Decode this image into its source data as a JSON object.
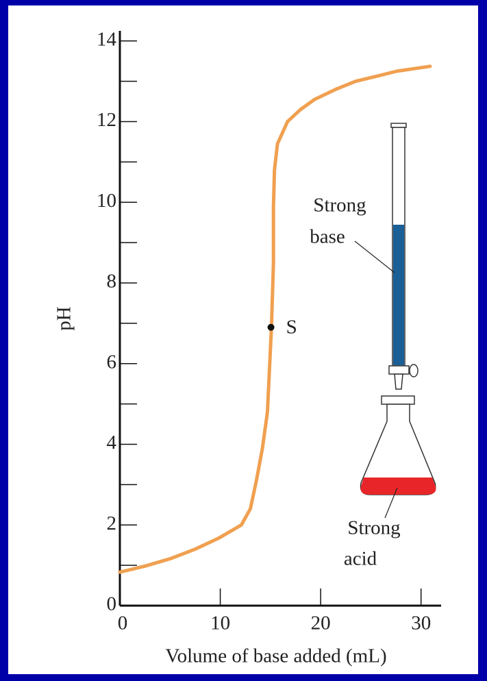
{
  "chart_data": {
    "type": "line",
    "x_label": "Volume of base added (mL)",
    "y_label": "pH",
    "x": [
      0,
      2.5,
      5.1,
      7.5,
      9.9,
      12.1,
      13.0,
      13.6,
      14.2,
      14.7,
      15.1,
      15.3,
      15.3,
      15.4,
      15.7,
      16.7,
      18.0,
      19.4,
      21.5,
      23.5,
      25.5,
      27.6,
      30.9
    ],
    "series": [
      {
        "name": "pH",
        "color": "#f0a050",
        "values": [
          0.83,
          0.98,
          1.17,
          1.4,
          1.68,
          2.0,
          2.4,
          3.1,
          3.9,
          4.8,
          6.9,
          8.5,
          9.9,
          10.8,
          11.45,
          12.0,
          12.3,
          12.55,
          12.8,
          13.0,
          13.12,
          13.25,
          13.37
        ]
      }
    ],
    "point": {
      "label": "S",
      "x": 15.05,
      "y": 6.9
    },
    "base_label": [
      "Strong",
      "base"
    ],
    "acid_label": [
      "Strong",
      "acid"
    ],
    "xlim": [
      0,
      32
    ],
    "ylim": [
      0,
      14.25
    ],
    "xticks": [
      0,
      10,
      20,
      30
    ],
    "yticks": [
      0,
      2,
      4,
      6,
      8,
      10,
      12,
      14
    ],
    "yminor_ticks": [
      1,
      3,
      5,
      7,
      9,
      11,
      13
    ]
  }
}
